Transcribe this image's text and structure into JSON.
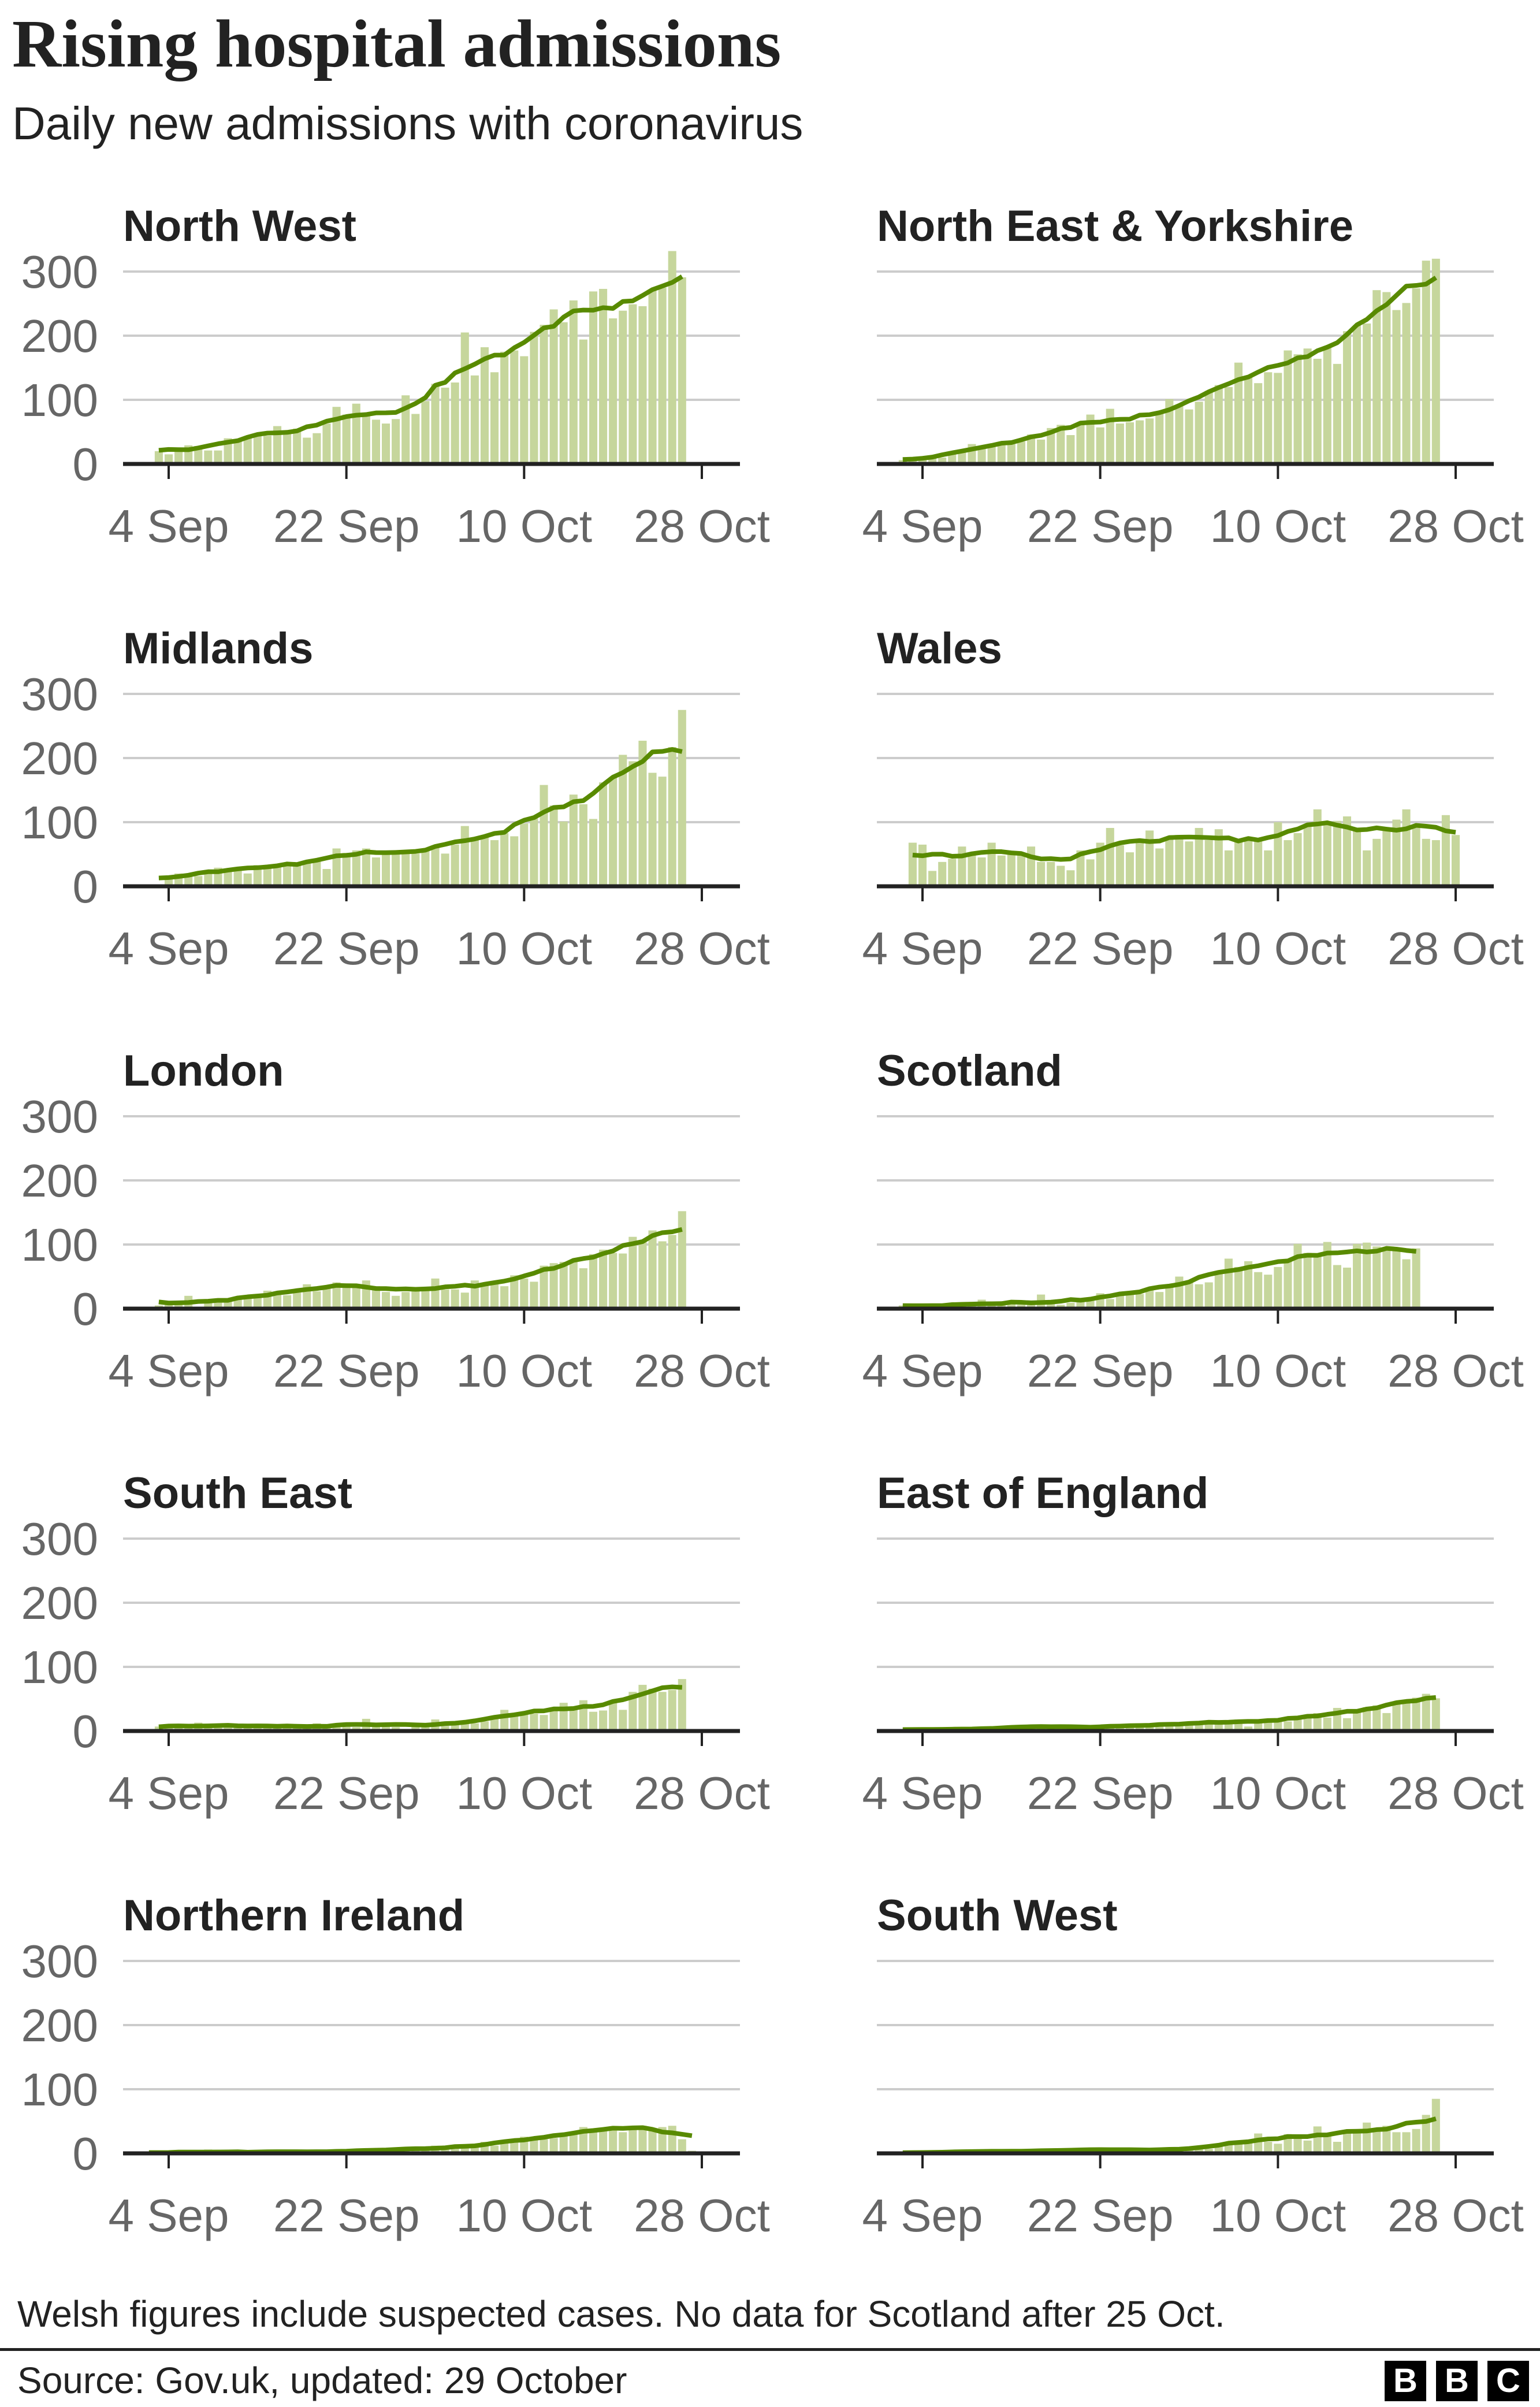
{
  "header": {
    "title": "Rising hospital admissions",
    "subtitle": "Daily new admissions with coronavirus"
  },
  "footer": {
    "note": "Welsh figures include suspected cases. No data for Scotland after 25 Oct.",
    "source": "Source: Gov.uk, updated: 29 October",
    "logo_letters": [
      "B",
      "B",
      "C"
    ]
  },
  "colors": {
    "bars": "#c6d69c",
    "line": "#588a00",
    "grid": "#cccccc",
    "axis": "#222222"
  },
  "chart_data": [
    {
      "type": "bar",
      "title": "North West",
      "has_average_line": true,
      "ylim": [
        0,
        300
      ],
      "yticks": [
        0,
        100,
        200,
        300
      ],
      "xticks": [
        "4 Sep",
        "22 Sep",
        "10 Oct",
        "28 Oct"
      ],
      "grid": true,
      "date_range": [
        "2020-09-03",
        "2020-10-26"
      ],
      "values": [
        20,
        15,
        21,
        29,
        28,
        21,
        21,
        40,
        38,
        43,
        47,
        44,
        59,
        51,
        55,
        41,
        48,
        63,
        89,
        77,
        94,
        77,
        69,
        63,
        70,
        107,
        78,
        98,
        125,
        119,
        127,
        205,
        138,
        182,
        143,
        175,
        177,
        168,
        206,
        217,
        241,
        221,
        255,
        194,
        269,
        273,
        227,
        239,
        249,
        246,
        271,
        275,
        332,
        291
      ]
    },
    {
      "type": "bar",
      "title": "North East & Yorkshire",
      "has_average_line": true,
      "ylim": [
        0,
        300
      ],
      "yticks": [
        0,
        100,
        200,
        300
      ],
      "xticks": [
        "4 Sep",
        "22 Sep",
        "10 Oct",
        "28 Oct"
      ],
      "grid": true,
      "date_range": [
        "2020-09-02",
        "2020-10-26"
      ],
      "values": [
        6,
        5,
        8,
        9,
        10,
        15,
        22,
        31,
        26,
        28,
        29,
        31,
        35,
        46,
        38,
        56,
        61,
        45,
        64,
        77,
        57,
        86,
        63,
        65,
        68,
        71,
        79,
        101,
        91,
        85,
        97,
        114,
        123,
        120,
        158,
        137,
        126,
        143,
        142,
        177,
        171,
        180,
        164,
        181,
        156,
        207,
        216,
        219,
        271,
        268,
        240,
        251,
        274,
        317,
        320
      ]
    },
    {
      "type": "bar",
      "title": "Midlands",
      "has_average_line": true,
      "ylim": [
        0,
        300
      ],
      "yticks": [
        0,
        100,
        200,
        300
      ],
      "xticks": [
        "4 Sep",
        "22 Sep",
        "10 Oct",
        "28 Oct"
      ],
      "grid": true,
      "date_range": [
        "2020-09-03",
        "2020-10-26"
      ],
      "values": [
        3,
        13,
        20,
        16,
        16,
        24,
        29,
        26,
        28,
        20,
        33,
        30,
        34,
        32,
        35,
        40,
        40,
        27,
        59,
        52,
        56,
        59,
        45,
        51,
        54,
        51,
        51,
        59,
        64,
        51,
        65,
        94,
        74,
        78,
        72,
        83,
        78,
        98,
        106,
        158,
        126,
        101,
        143,
        128,
        105,
        162,
        170,
        205,
        195,
        227,
        177,
        171,
        217,
        275
      ]
    },
    {
      "type": "bar",
      "title": "Wales",
      "has_average_line": true,
      "ylim": [
        0,
        300
      ],
      "yticks": [
        0,
        100,
        200,
        300
      ],
      "xticks": [
        "4 Sep",
        "22 Sep",
        "10 Oct",
        "28 Oct"
      ],
      "grid": true,
      "date_range": [
        "2020-09-03",
        "2020-10-28"
      ],
      "values": [
        68,
        65,
        24,
        38,
        43,
        62,
        51,
        45,
        68,
        48,
        53,
        51,
        62,
        38,
        38,
        32,
        25,
        56,
        42,
        68,
        91,
        64,
        53,
        68,
        87,
        59,
        77,
        80,
        70,
        91,
        72,
        89,
        56,
        73,
        75,
        73,
        56,
        100,
        72,
        83,
        95,
        120,
        99,
        102,
        109,
        86,
        56,
        74,
        89,
        104,
        120,
        95,
        74,
        72,
        111,
        80
      ]
    },
    {
      "type": "bar",
      "title": "London",
      "has_average_line": true,
      "ylim": [
        0,
        300
      ],
      "yticks": [
        0,
        100,
        200,
        300
      ],
      "xticks": [
        "4 Sep",
        "22 Sep",
        "10 Oct",
        "28 Oct"
      ],
      "grid": true,
      "date_range": [
        "2020-09-03",
        "2020-10-26"
      ],
      "values": [
        5,
        11,
        6,
        20,
        2,
        11,
        12,
        16,
        14,
        16,
        20,
        28,
        23,
        21,
        25,
        38,
        27,
        35,
        41,
        33,
        36,
        44,
        35,
        26,
        20,
        26,
        32,
        30,
        47,
        30,
        30,
        25,
        44,
        38,
        43,
        35,
        52,
        47,
        42,
        67,
        71,
        73,
        76,
        63,
        85,
        92,
        87,
        86,
        112,
        105,
        122,
        105,
        115,
        152
      ]
    },
    {
      "type": "bar",
      "title": "Scotland",
      "has_average_line": true,
      "ylim": [
        0,
        300
      ],
      "yticks": [
        0,
        100,
        200,
        300
      ],
      "xticks": [
        "4 Sep",
        "22 Sep",
        "10 Oct",
        "28 Oct"
      ],
      "grid": true,
      "date_range": [
        "2020-09-02",
        "2020-10-25"
      ],
      "values": [
        5,
        3,
        8,
        3,
        4,
        5,
        5,
        5,
        14,
        11,
        6,
        7,
        6,
        6,
        22,
        11,
        6,
        9,
        11,
        16,
        24,
        15,
        23,
        27,
        23,
        33,
        26,
        36,
        50,
        41,
        38,
        41,
        59,
        78,
        65,
        74,
        57,
        53,
        65,
        76,
        101,
        87,
        82,
        104,
        68,
        64,
        101,
        103,
        97,
        94,
        92,
        77,
        94
      ]
    },
    {
      "type": "bar",
      "title": "South East",
      "has_average_line": true,
      "ylim": [
        0,
        300
      ],
      "yticks": [
        0,
        100,
        200,
        300
      ],
      "xticks": [
        "4 Sep",
        "22 Sep",
        "10 Oct",
        "28 Oct"
      ],
      "grid": true,
      "date_range": [
        "2020-09-03",
        "2020-10-26"
      ],
      "values": [
        7,
        6,
        6,
        7,
        13,
        9,
        6,
        7,
        8,
        9,
        10,
        8,
        7,
        7,
        6,
        5,
        12,
        7,
        6,
        9,
        6,
        19,
        12,
        13,
        6,
        2,
        11,
        9,
        18,
        8,
        10,
        13,
        12,
        15,
        20,
        33,
        27,
        30,
        27,
        25,
        32,
        44,
        35,
        48,
        30,
        32,
        47,
        33,
        61,
        72,
        66,
        61,
        64,
        81
      ]
    },
    {
      "type": "bar",
      "title": "East of England",
      "has_average_line": true,
      "ylim": [
        0,
        300
      ],
      "yticks": [
        0,
        100,
        200,
        300
      ],
      "xticks": [
        "4 Sep",
        "22 Sep",
        "10 Oct",
        "28 Oct"
      ],
      "grid": true,
      "date_range": [
        "2020-09-02",
        "2020-10-26"
      ],
      "values": [
        2,
        2,
        2,
        3,
        3,
        3,
        2,
        3,
        4,
        3,
        4,
        7,
        5,
        8,
        9,
        8,
        6,
        6,
        5,
        6,
        7,
        7,
        5,
        10,
        12,
        7,
        10,
        9,
        9,
        14,
        12,
        14,
        15,
        14,
        18,
        7,
        16,
        18,
        17,
        15,
        23,
        21,
        28,
        21,
        36,
        20,
        33,
        37,
        40,
        28,
        46,
        48,
        52,
        58,
        51
      ]
    },
    {
      "type": "bar",
      "title": "Northern Ireland",
      "has_average_line": true,
      "ylim": [
        0,
        300
      ],
      "yticks": [
        0,
        100,
        200,
        300
      ],
      "xticks": [
        "4 Sep",
        "22 Sep",
        "10 Oct",
        "28 Oct"
      ],
      "grid": true,
      "date_range": [
        "2020-09-02",
        "2020-10-27"
      ],
      "values": [
        1,
        1,
        2,
        1,
        1,
        2,
        6,
        1,
        1,
        2,
        2,
        2,
        3,
        2,
        3,
        3,
        3,
        2,
        2,
        2,
        3,
        3,
        7,
        5,
        7,
        5,
        5,
        5,
        9,
        12,
        8,
        8,
        9,
        10,
        18,
        12,
        17,
        22,
        26,
        23,
        22,
        24,
        29,
        29,
        41,
        36,
        40,
        41,
        33,
        41,
        43,
        39,
        41,
        43,
        22,
        4
      ]
    },
    {
      "type": "bar",
      "title": "South West",
      "has_average_line": true,
      "ylim": [
        0,
        300
      ],
      "yticks": [
        0,
        100,
        200,
        300
      ],
      "xticks": [
        "4 Sep",
        "22 Sep",
        "10 Oct",
        "28 Oct"
      ],
      "grid": true,
      "date_range": [
        "2020-09-02",
        "2020-10-26"
      ],
      "values": [
        1,
        1,
        1,
        1,
        2,
        2,
        3,
        3,
        4,
        3,
        3,
        3,
        4,
        3,
        4,
        4,
        5,
        6,
        5,
        5,
        6,
        7,
        6,
        6,
        5,
        5,
        5,
        5,
        5,
        9,
        10,
        7,
        12,
        16,
        17,
        18,
        31,
        18,
        15,
        30,
        28,
        20,
        42,
        30,
        18,
        33,
        31,
        48,
        38,
        43,
        33,
        33,
        38,
        60,
        85
      ]
    }
  ]
}
